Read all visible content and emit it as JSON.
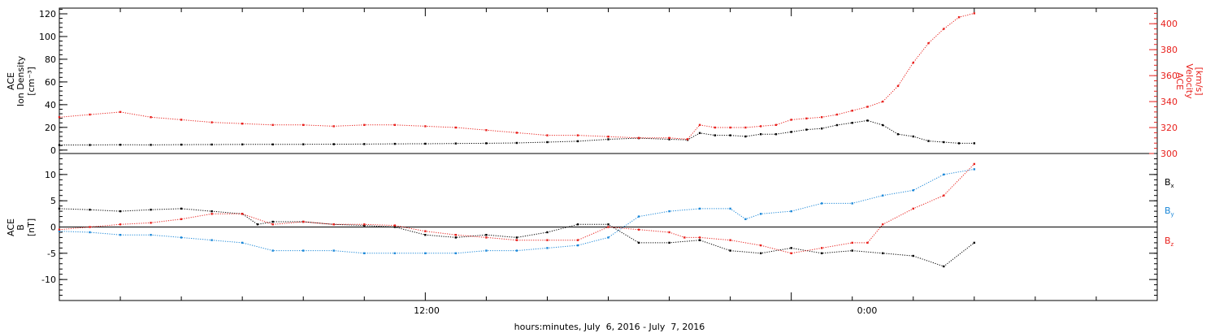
{
  "chart_data": [
    {
      "type": "scatter",
      "panel": "top",
      "ylabel_left": [
        "ACE",
        "Ion Density",
        "[cm⁻³]"
      ],
      "ylabel_right": [
        "ACE",
        "Velocity",
        "[km/s]"
      ],
      "xlabel": "hours:minutes, July  6, 2016 - July  7, 2016",
      "x_ticks": [
        "12:00",
        "0:00"
      ],
      "x_range_hours": [
        0,
        36
      ],
      "ylim_left": [
        -3,
        125
      ],
      "ylim_right": [
        300,
        412
      ],
      "y_ticks_left": [
        "0",
        "20",
        "40",
        "60",
        "80",
        "100",
        "120"
      ],
      "y_ticks_right": [
        "300",
        "320",
        "340",
        "360",
        "380",
        "400"
      ],
      "colors": {
        "density": "#000000",
        "velocity": "#e8201c"
      },
      "series": [
        {
          "axis": "left",
          "color": "#000000",
          "x": [
            0,
            1,
            2,
            3,
            4,
            5,
            6,
            7,
            8,
            9,
            10,
            11,
            12,
            13,
            14,
            15,
            16,
            17,
            18,
            19,
            20,
            20.6,
            21,
            21.5,
            22,
            22.5,
            23,
            23.5,
            24,
            24.5,
            25,
            25.5,
            26,
            26.5,
            27,
            27.5,
            28,
            28.5,
            29,
            29.5,
            30
          ],
          "y": [
            4.5,
            4.5,
            4.7,
            4.6,
            4.8,
            4.9,
            5,
            5,
            5.1,
            5.2,
            5.3,
            5.5,
            5.6,
            5.8,
            6,
            6.3,
            7,
            7.8,
            9.5,
            10.5,
            9.5,
            9,
            15,
            13,
            13,
            12,
            14,
            14,
            16,
            18,
            19,
            22,
            24,
            26,
            22,
            14,
            12,
            8,
            7,
            6,
            6
          ]
        },
        {
          "axis": "right",
          "color": "#e8201c",
          "x": [
            0,
            1,
            2,
            3,
            4,
            5,
            6,
            7,
            8,
            9,
            10,
            11,
            12,
            13,
            14,
            15,
            16,
            17,
            18,
            19,
            20,
            20.6,
            21,
            21.5,
            22,
            22.5,
            23,
            23.5,
            24,
            24.5,
            25,
            25.5,
            26,
            26.5,
            27,
            27.5,
            28,
            28.5,
            29,
            29.5,
            30
          ],
          "y": [
            328,
            330,
            332,
            328,
            326,
            324,
            323,
            322,
            322,
            321,
            322,
            322,
            321,
            320,
            318,
            316,
            314,
            314,
            313,
            312,
            312,
            311,
            322,
            320,
            320,
            320,
            321,
            322,
            326,
            327,
            328,
            330,
            333,
            336,
            340,
            352,
            370,
            385,
            396,
            405,
            408
          ]
        }
      ]
    },
    {
      "type": "scatter",
      "panel": "bottom",
      "ylabel": [
        "ACE",
        "B",
        "[nT]"
      ],
      "ylim": [
        -14,
        14
      ],
      "y_ticks": [
        "-10",
        "-5",
        "0",
        "5",
        "10"
      ],
      "x_range_hours": [
        0,
        36
      ],
      "legend_placement": "right",
      "series": [
        {
          "name": "Bx",
          "color": "#000000",
          "x": [
            0,
            1,
            2,
            3,
            4,
            5,
            6,
            6.5,
            7,
            8,
            9,
            10,
            11,
            12,
            13,
            14,
            15,
            16,
            17,
            18,
            19,
            20,
            21,
            22,
            23,
            24,
            25,
            26,
            27,
            28,
            29,
            30
          ],
          "y": [
            3.5,
            3.3,
            3,
            3.3,
            3.5,
            3,
            2.5,
            0.5,
            1,
            1,
            0.5,
            0.3,
            0,
            -1.5,
            -2,
            -1.5,
            -2,
            -1,
            0.5,
            0.5,
            -3,
            -3,
            -2.5,
            -4.5,
            -5,
            -4,
            -5,
            -4.5,
            -5,
            -5.5,
            -7.5,
            -3
          ]
        },
        {
          "name": "By",
          "color": "#1a87d8",
          "x": [
            0,
            1,
            2,
            3,
            4,
            5,
            6,
            7,
            8,
            9,
            10,
            11,
            12,
            13,
            14,
            15,
            16,
            17,
            18,
            19,
            20,
            21,
            22,
            22.5,
            23,
            24,
            25,
            26,
            27,
            28,
            29,
            30
          ],
          "y": [
            -0.8,
            -1,
            -1.5,
            -1.5,
            -2,
            -2.5,
            -3,
            -4.5,
            -4.5,
            -4.5,
            -5,
            -5,
            -5,
            -5,
            -4.5,
            -4.5,
            -4,
            -3.5,
            -2,
            2,
            3,
            3.5,
            3.5,
            1.5,
            2.5,
            3,
            4.5,
            4.5,
            6,
            7,
            10,
            11
          ]
        },
        {
          "name": "Bz",
          "color": "#e8201c",
          "x": [
            0,
            1,
            2,
            3,
            4,
            5,
            6,
            7,
            8,
            9,
            10,
            11,
            12,
            13,
            14,
            15,
            16,
            17,
            18,
            19,
            20,
            20.5,
            21,
            22,
            23,
            24,
            25,
            26,
            26.5,
            27,
            28,
            29,
            30
          ],
          "y": [
            -0.5,
            0,
            0.5,
            0.8,
            1.5,
            2.5,
            2.5,
            0.5,
            1,
            0.5,
            0.5,
            0.3,
            -0.8,
            -1.5,
            -2,
            -2.5,
            -2.5,
            -2.5,
            0,
            -0.5,
            -1,
            -2,
            -2,
            -2.5,
            -3.5,
            -5,
            -4,
            -3,
            -3,
            0.5,
            3.5,
            6,
            12
          ]
        }
      ]
    }
  ]
}
